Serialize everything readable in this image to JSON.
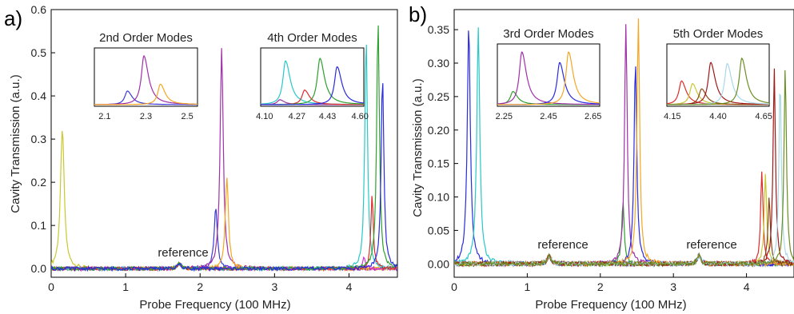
{
  "chart_data": [
    {
      "type": "line",
      "panel_label": "a)",
      "xlabel": "Probe Frequency (100 MHz)",
      "ylabel": "Cavity Transmission (a.u.)",
      "xlim": [
        0,
        4.65
      ],
      "ylim": [
        -0.02,
        0.6
      ],
      "x_ticks": [
        "0",
        "1",
        "2",
        "3",
        "4"
      ],
      "y_ticks": [
        "0.0",
        "0.1",
        "0.2",
        "0.3",
        "0.4",
        "0.5",
        "0.6"
      ],
      "grid": false,
      "annotations": [
        {
          "text": "reference",
          "x": 1.72,
          "y": 0.035
        }
      ],
      "series": [
        {
          "color": "#c8c832",
          "peaks": [
            {
              "x": 0.15,
              "y": 0.325,
              "w": 0.03
            }
          ]
        },
        {
          "color": "#3a3ad8",
          "peaks": [
            {
              "x": 2.21,
              "y": 0.145,
              "w": 0.025
            }
          ]
        },
        {
          "color": "#a030a8",
          "peaks": [
            {
              "x": 2.29,
              "y": 0.512,
              "w": 0.025
            }
          ]
        },
        {
          "color": "#f5a623",
          "peaks": [
            {
              "x": 2.36,
              "y": 0.215,
              "w": 0.025
            }
          ]
        },
        {
          "color": "#d830d8",
          "peaks": [
            {
              "x": 4.2,
              "y": 0.03,
              "w": 0.02
            }
          ]
        },
        {
          "color": "#29c8c8",
          "peaks": [
            {
              "x": 4.23,
              "y": 0.532,
              "w": 0.022
            }
          ]
        },
        {
          "color": "#e02a2a",
          "peaks": [
            {
              "x": 4.31,
              "y": 0.17,
              "w": 0.02
            }
          ]
        },
        {
          "color": "#2ea02e",
          "peaks": [
            {
              "x": 4.39,
              "y": 0.575,
              "w": 0.022
            }
          ]
        },
        {
          "color": "#2a2ae0",
          "peaks": [
            {
              "x": 4.45,
              "y": 0.445,
              "w": 0.022
            }
          ]
        }
      ],
      "reference_bump": {
        "x": 1.72,
        "y": 0.012
      },
      "insets": [
        {
          "title": "2nd Order Modes",
          "xlim": [
            2.05,
            2.55
          ],
          "x_ticks": [
            "2.1",
            "2.3",
            "2.5"
          ],
          "x_tick_values": [
            2.1,
            2.3,
            2.5
          ],
          "series": [
            {
              "color": "#3a3ad8",
              "x": 2.21,
              "y": 0.28
            },
            {
              "color": "#a030a8",
              "x": 2.29,
              "y": 1.0
            },
            {
              "color": "#f5a623",
              "x": 2.37,
              "y": 0.42
            }
          ]
        },
        {
          "title": "4th Order Modes",
          "xlim": [
            4.08,
            4.62
          ],
          "x_ticks": [
            "4.10",
            "4.27",
            "4.43",
            "4.60"
          ],
          "x_tick_values": [
            4.1,
            4.27,
            4.43,
            4.6
          ],
          "series": [
            {
              "color": "#a030a8",
              "x": 4.18,
              "y": 0.1
            },
            {
              "color": "#29c8c8",
              "x": 4.21,
              "y": 0.9
            },
            {
              "color": "#e02a2a",
              "x": 4.31,
              "y": 0.3
            },
            {
              "color": "#2ea02e",
              "x": 4.39,
              "y": 0.95
            },
            {
              "color": "#2a2ae0",
              "x": 4.48,
              "y": 0.78
            }
          ]
        }
      ]
    },
    {
      "type": "line",
      "panel_label": "b)",
      "xlabel": "Probe Frequency (100 MHz)",
      "ylabel": "Cavity Transmission (a.u.)",
      "xlim": [
        0,
        4.65
      ],
      "ylim": [
        -0.02,
        0.38
      ],
      "x_ticks": [
        "0",
        "1",
        "2",
        "3",
        "4"
      ],
      "y_ticks": [
        "0.00",
        "0.05",
        "0.10",
        "0.15",
        "0.20",
        "0.25",
        "0.30",
        "0.35"
      ],
      "grid": false,
      "annotations": [
        {
          "text": "reference",
          "x": 1.3,
          "y": 0.03
        },
        {
          "text": "reference",
          "x": 3.35,
          "y": 0.03
        }
      ],
      "series": [
        {
          "color": "#2a2ae0",
          "peaks": [
            {
              "x": 0.2,
              "y": 0.36,
              "w": 0.025
            }
          ]
        },
        {
          "color": "#29c8c8",
          "peaks": [
            {
              "x": 0.33,
              "y": 0.352,
              "w": 0.025
            }
          ]
        },
        {
          "color": "#2ea02e",
          "peaks": [
            {
              "x": 2.31,
              "y": 0.095,
              "w": 0.02
            }
          ]
        },
        {
          "color": "#a030a8",
          "peaks": [
            {
              "x": 2.35,
              "y": 0.358,
              "w": 0.022
            }
          ]
        },
        {
          "color": "#2a2ae0",
          "peaks": [
            {
              "x": 2.48,
              "y": 0.305,
              "w": 0.022
            }
          ]
        },
        {
          "color": "#f5a623",
          "peaks": [
            {
              "x": 2.52,
              "y": 0.368,
              "w": 0.022
            }
          ]
        },
        {
          "color": "#e02a2a",
          "peaks": [
            {
              "x": 4.21,
              "y": 0.136,
              "w": 0.02
            }
          ]
        },
        {
          "color": "#c8c832",
          "peaks": [
            {
              "x": 4.26,
              "y": 0.134,
              "w": 0.02
            }
          ]
        },
        {
          "color": "#8b4513",
          "peaks": [
            {
              "x": 4.31,
              "y": 0.1,
              "w": 0.02
            }
          ]
        },
        {
          "color": "#a01818",
          "peaks": [
            {
              "x": 4.38,
              "y": 0.29,
              "w": 0.02
            }
          ]
        },
        {
          "color": "#a8d8e8",
          "peaks": [
            {
              "x": 4.46,
              "y": 0.275,
              "w": 0.02
            }
          ]
        },
        {
          "color": "#6b8e23",
          "peaks": [
            {
              "x": 4.53,
              "y": 0.295,
              "w": 0.02
            }
          ]
        }
      ],
      "reference_bumps": [
        {
          "x": 1.3,
          "y": 0.012
        },
        {
          "x": 3.35,
          "y": 0.012
        }
      ],
      "insets": [
        {
          "title": "3rd Order Modes",
          "xlim": [
            2.22,
            2.68
          ],
          "x_ticks": [
            "2.25",
            "2.45",
            "2.65"
          ],
          "x_tick_values": [
            2.25,
            2.45,
            2.65
          ],
          "series": [
            {
              "color": "#2ea02e",
              "x": 2.29,
              "y": 0.25
            },
            {
              "color": "#a030a8",
              "x": 2.33,
              "y": 1.0
            },
            {
              "color": "#2a2ae0",
              "x": 2.5,
              "y": 0.8
            },
            {
              "color": "#f5a623",
              "x": 2.54,
              "y": 1.0
            }
          ]
        },
        {
          "title": "5th Order Modes",
          "xlim": [
            4.12,
            4.68
          ],
          "x_ticks": [
            "4.15",
            "4.40",
            "4.65"
          ],
          "x_tick_values": [
            4.15,
            4.4,
            4.65
          ],
          "series": [
            {
              "color": "#e02a2a",
              "x": 4.2,
              "y": 0.45
            },
            {
              "color": "#c8c832",
              "x": 4.26,
              "y": 0.4
            },
            {
              "color": "#8b4513",
              "x": 4.31,
              "y": 0.3
            },
            {
              "color": "#a01818",
              "x": 4.36,
              "y": 0.8
            },
            {
              "color": "#a8d8e8",
              "x": 4.45,
              "y": 0.78
            },
            {
              "color": "#6b8e23",
              "x": 4.53,
              "y": 0.88
            }
          ]
        }
      ]
    }
  ]
}
